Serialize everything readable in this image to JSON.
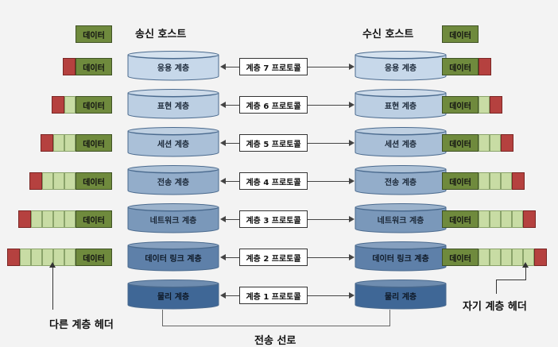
{
  "sender_title": "송신 호스트",
  "receiver_title": "수신 호스트",
  "data_label": "데이터",
  "layers": [
    {
      "name": "응용 계층",
      "protocol": "계층 7 프로토콜",
      "header_segments": 0
    },
    {
      "name": "표현 계층",
      "protocol": "계층 6 프로토콜",
      "header_segments": 1
    },
    {
      "name": "세션 계층",
      "protocol": "계층 5 프로토콜",
      "header_segments": 2
    },
    {
      "name": "전송 계층",
      "protocol": "계층 4 프로토콜",
      "header_segments": 3
    },
    {
      "name": "네트워크 계층",
      "protocol": "계층 3 프로토콜",
      "header_segments": 4
    },
    {
      "name": "데이터 링크 계층",
      "protocol": "계층 2 프로토콜",
      "header_segments": 5
    },
    {
      "name": "물리 계층",
      "protocol": "계층 1 프로토콜",
      "header_segments": null
    }
  ],
  "left_callout": "다른 계층 헤더",
  "right_callout": "자기 계층 헤더",
  "medium_label": "전송 선로",
  "colors": {
    "data_green": "#6f8a3d",
    "light_green": "#c8dca4",
    "header_red": "#b5413f",
    "cylinder_light": "#c7d8ea",
    "cylinder_dark": "#3f6796"
  }
}
